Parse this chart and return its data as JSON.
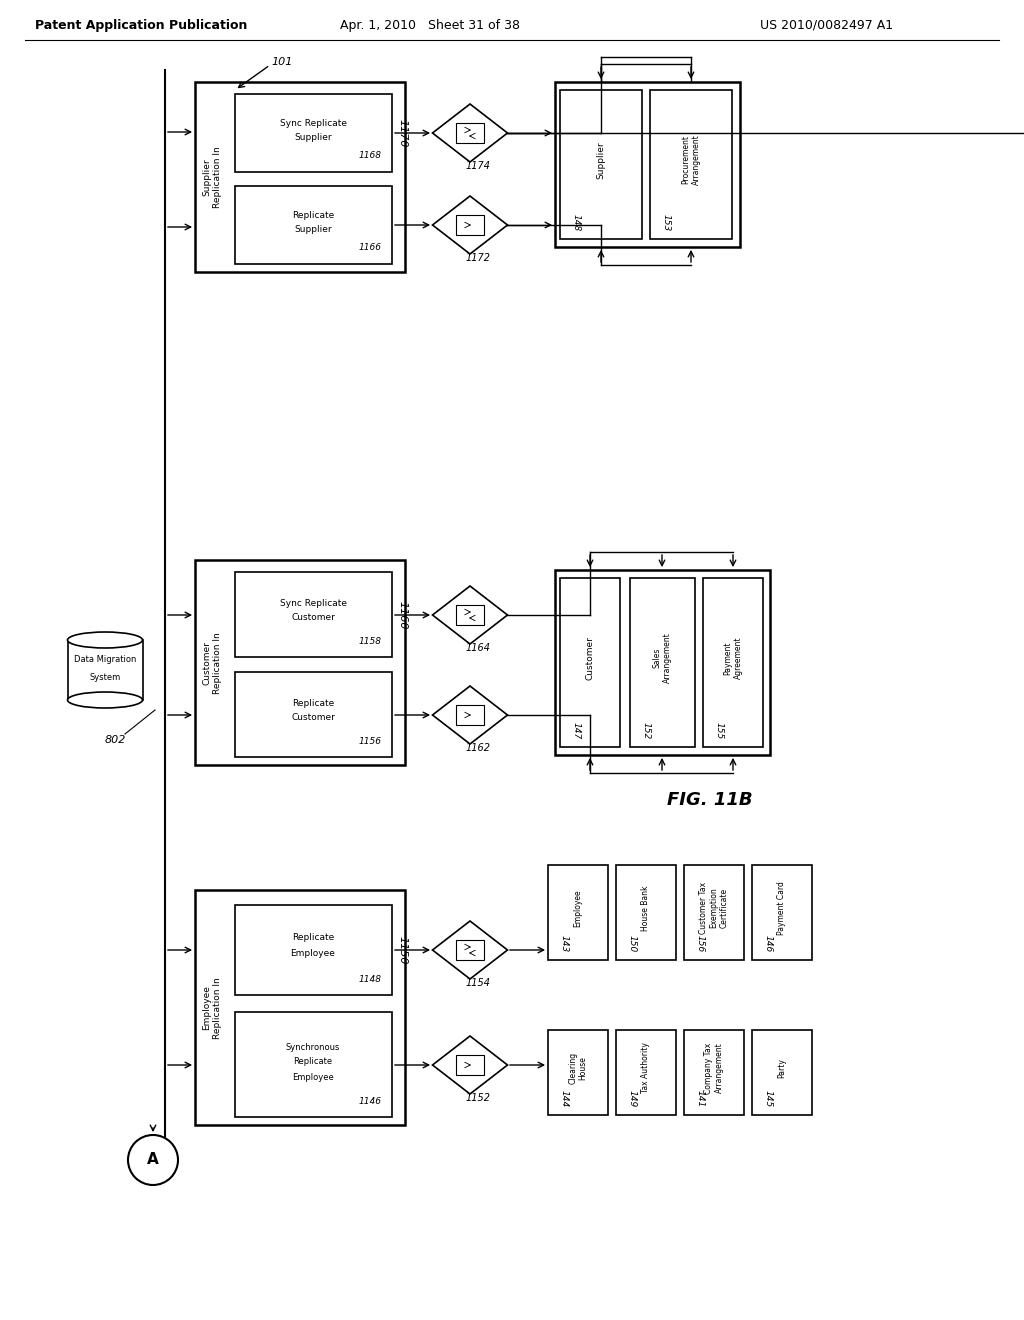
{
  "title_left": "Patent Application Publication",
  "title_mid": "Apr. 1, 2010   Sheet 31 of 38",
  "title_right": "US 2010/0082497 A1",
  "fig_label": "FIG. 11B",
  "bg_color": "#ffffff"
}
